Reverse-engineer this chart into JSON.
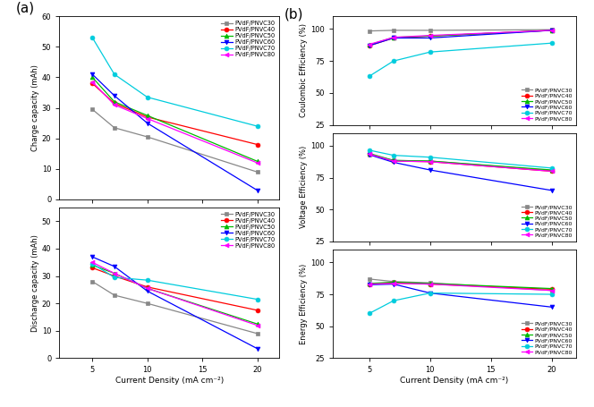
{
  "x": [
    5,
    7,
    10,
    20
  ],
  "series_labels": [
    "PVdF/PNVC30",
    "PVdF/PNVC40",
    "PVdF/PNVC50",
    "PVdF/PNVC60",
    "PVdF/PNVC70",
    "PVdF/PNVC80"
  ],
  "colors": [
    "#888888",
    "#ff0000",
    "#00bb00",
    "#0000ff",
    "#00ccdd",
    "#ff00ff"
  ],
  "markers": [
    "s",
    "o",
    "^",
    "v",
    "o",
    "<"
  ],
  "markerfilled": [
    true,
    true,
    true,
    true,
    true,
    true
  ],
  "charge_capacity": [
    [
      29.5,
      23.5,
      20.5,
      9.0
    ],
    [
      38.0,
      31.5,
      27.0,
      18.0
    ],
    [
      40.0,
      32.0,
      27.5,
      12.5
    ],
    [
      41.0,
      34.0,
      25.0,
      3.0
    ],
    [
      53.0,
      41.0,
      33.5,
      24.0
    ],
    [
      38.5,
      31.0,
      26.5,
      12.0
    ]
  ],
  "discharge_capacity": [
    [
      28.0,
      23.0,
      20.0,
      9.0
    ],
    [
      33.0,
      30.0,
      26.0,
      17.5
    ],
    [
      34.0,
      31.0,
      25.5,
      12.5
    ],
    [
      37.0,
      33.5,
      24.5,
      3.5
    ],
    [
      34.5,
      29.5,
      28.5,
      21.5
    ],
    [
      35.0,
      31.0,
      25.5,
      12.0
    ]
  ],
  "coulombic_efficiency": [
    [
      98.5,
      99.0,
      99.0,
      99.5
    ],
    [
      87.0,
      93.0,
      94.5,
      99.0
    ],
    [
      87.5,
      93.5,
      94.5,
      99.0
    ],
    [
      87.0,
      93.0,
      93.0,
      99.0
    ],
    [
      63.0,
      75.0,
      82.0,
      89.0
    ],
    [
      88.0,
      93.5,
      95.0,
      99.0
    ]
  ],
  "voltage_efficiency": [
    [
      93.0,
      88.5,
      88.0,
      80.5
    ],
    [
      93.5,
      88.0,
      87.5,
      80.0
    ],
    [
      94.0,
      88.5,
      88.0,
      81.0
    ],
    [
      93.0,
      87.0,
      81.0,
      65.0
    ],
    [
      96.5,
      92.5,
      91.0,
      82.5
    ],
    [
      93.5,
      88.0,
      87.5,
      80.0
    ]
  ],
  "energy_efficiency": [
    [
      87.0,
      85.0,
      84.0,
      78.0
    ],
    [
      83.0,
      84.0,
      83.0,
      79.0
    ],
    [
      83.5,
      84.5,
      83.5,
      79.5
    ],
    [
      82.5,
      83.0,
      76.0,
      65.0
    ],
    [
      60.0,
      70.0,
      76.0,
      75.0
    ],
    [
      83.0,
      83.5,
      83.0,
      78.0
    ]
  ],
  "xlabel": "Current Density (mA cm⁻²)",
  "ylabel_charge": "Charge capacity (mAh)",
  "ylabel_discharge": "Discharge capacity (mAh)",
  "ylabel_coulombic": "Coulombic Efficiency (%)",
  "ylabel_voltage": "Voltage Efficiency (%)",
  "ylabel_energy": "Energy Efficiency (%)",
  "label_a": "(a)",
  "label_b": "(b)"
}
